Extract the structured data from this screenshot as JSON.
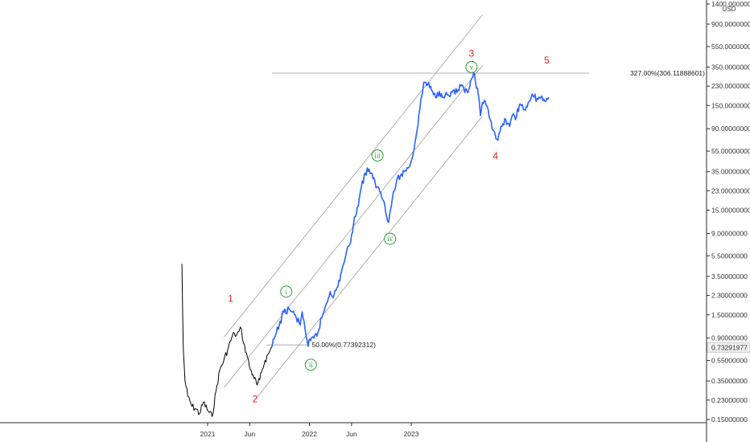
{
  "chart_data": {
    "type": "line",
    "y_scale": "log",
    "currency": "USD",
    "price_axis": {
      "tick_labels": [
        "1400.00000000",
        "900.00000000",
        "550.00000000",
        "350.00000000",
        "230.00000000",
        "150.00000000",
        "90.00000000",
        "55.00000000",
        "35.00000000",
        "23.00000000",
        "15.00000000",
        "9.00000000",
        "5.50000000",
        "3.50000000",
        "2.30000000",
        "1.50000000",
        "0.90000000",
        "0.55000000",
        "0.35000000",
        "0.23000000",
        "0.15000000"
      ],
      "tick_values": [
        1400,
        900,
        550,
        350,
        230,
        150,
        90,
        55,
        35,
        23,
        15,
        9,
        5.5,
        3.5,
        2.3,
        1.5,
        0.9,
        0.55,
        0.35,
        0.23,
        0.15
      ]
    },
    "time_axis": {
      "tick_labels": [
        "2021",
        "Jun",
        "2022",
        "Jun",
        "2023"
      ],
      "tick_dates": [
        "2021-01-01",
        "2021-06-01",
        "2022-01-01",
        "2022-06-01",
        "2023-01-01"
      ]
    },
    "current_price": {
      "label": "0.73291977",
      "value": 0.733
    },
    "series": [
      {
        "color": "#000000",
        "x": [
          "2020-10-01",
          "2020-10-03",
          "2020-10-06",
          "2020-10-12",
          "2020-10-22",
          "2020-11-06",
          "2020-11-20",
          "2020-12-03",
          "2020-12-17",
          "2021-01-03",
          "2021-01-17",
          "2021-01-31",
          "2021-02-14",
          "2021-02-28",
          "2021-03-14",
          "2021-03-28",
          "2021-04-07",
          "2021-04-14",
          "2021-04-24",
          "2021-05-02",
          "2021-05-10",
          "2021-05-20",
          "2021-06-03",
          "2021-06-13",
          "2021-06-27",
          "2021-07-07",
          "2021-07-16",
          "2021-07-26",
          "2021-08-09",
          "2021-08-20"
        ],
        "values": [
          4.6,
          1.9,
          0.7,
          0.35,
          0.25,
          0.2,
          0.19,
          0.17,
          0.22,
          0.18,
          0.16,
          0.28,
          0.45,
          0.55,
          0.7,
          0.9,
          1.0,
          0.95,
          1.05,
          1.1,
          0.8,
          0.65,
          0.45,
          0.4,
          0.32,
          0.36,
          0.45,
          0.55,
          0.65,
          0.75
        ]
      },
      {
        "color": "#2962ff",
        "x": [
          "2021-08-20",
          "2021-09-01",
          "2021-09-15",
          "2021-10-01",
          "2021-10-20",
          "2021-11-01",
          "2021-11-15",
          "2021-11-29",
          "2021-12-06",
          "2021-12-13",
          "2021-12-20",
          "2021-12-27",
          "2022-01-05",
          "2022-01-17",
          "2022-01-31",
          "2022-02-14",
          "2022-03-02",
          "2022-03-16",
          "2022-03-30",
          "2022-04-13",
          "2022-04-27",
          "2022-05-11",
          "2022-05-25",
          "2022-06-08",
          "2022-06-22",
          "2022-07-06",
          "2022-07-20",
          "2022-08-03",
          "2022-08-17",
          "2022-08-31",
          "2022-09-14",
          "2022-09-28",
          "2022-10-12",
          "2022-10-26",
          "2022-11-09",
          "2022-11-23",
          "2022-12-07",
          "2022-12-21",
          "2023-01-04",
          "2023-01-18",
          "2023-02-01",
          "2023-02-15",
          "2023-03-01",
          "2023-03-15",
          "2023-03-29",
          "2023-04-05",
          "2023-04-19",
          "2023-05-03",
          "2023-05-17",
          "2023-05-31",
          "2023-06-14",
          "2023-06-28",
          "2023-07-12",
          "2023-07-26",
          "2023-08-09",
          "2023-08-16",
          "2023-08-23",
          "2023-08-30",
          "2023-09-06",
          "2023-09-13",
          "2023-09-27",
          "2023-10-11",
          "2023-10-25",
          "2023-11-08",
          "2023-11-22",
          "2023-12-06",
          "2023-12-20",
          "2024-01-03",
          "2024-01-10",
          "2024-01-17",
          "2024-01-31",
          "2024-02-14",
          "2024-02-28",
          "2024-03-13",
          "2024-03-27",
          "2024-04-10",
          "2024-04-24",
          "2024-05-08"
        ],
        "values": [
          0.75,
          0.95,
          1.2,
          1.6,
          1.7,
          1.6,
          1.4,
          1.2,
          1.6,
          1.3,
          0.95,
          0.75,
          0.85,
          0.9,
          1.0,
          1.4,
          1.9,
          2.5,
          2.3,
          2.8,
          4.0,
          5.5,
          7.0,
          11.0,
          16.0,
          25.0,
          34.0,
          37.0,
          30.0,
          25.0,
          22.0,
          17.0,
          11.5,
          20.0,
          28.0,
          32.0,
          35.0,
          38.0,
          47.0,
          75.0,
          140.0,
          250.0,
          240.0,
          210.0,
          180.0,
          200.0,
          195.0,
          190.0,
          185.0,
          210.0,
          200.0,
          230.0,
          200.0,
          210.0,
          280.0,
          300.0,
          220.0,
          190.0,
          120.0,
          160.0,
          150.0,
          110.0,
          85.0,
          70.0,
          95.0,
          110.0,
          95.0,
          125.0,
          110.0,
          140.0,
          150.0,
          135.0,
          165.0,
          185.0,
          175.0,
          180.0,
          165.0,
          180.0
        ]
      }
    ],
    "channel": {
      "anchors": [
        {
          "x": "2021-03-01",
          "y": 0.92
        },
        {
          "x": "2023-09-13",
          "y": 1100
        },
        {
          "x": "2021-06-13",
          "y": 0.22
        }
      ],
      "line_color": "#9e9e9e"
    },
    "annotations": {
      "fib_lines": [
        {
          "label": "327.00%(306.11888601)",
          "value": 306.11888601,
          "x_start": "2021-08-20",
          "x_end": "2024-09-30"
        },
        {
          "label": "50.00%(0.77392312)",
          "value": 0.77392312,
          "x_start": "2021-08-01",
          "x_end": "2022-01-01"
        }
      ],
      "wave_labels_red": [
        {
          "text": "1",
          "x": "2021-03-24",
          "y": 2.0
        },
        {
          "text": "2",
          "x": "2021-06-20",
          "y": 0.22
        },
        {
          "text": "3",
          "x": "2023-08-05",
          "y": 440
        },
        {
          "text": "4",
          "x": "2023-10-30",
          "y": 46
        },
        {
          "text": "5",
          "x": "2024-05-01",
          "y": 380
        }
      ],
      "wave_labels_green": [
        {
          "text": "i",
          "x": "2021-10-10",
          "y": 2.5
        },
        {
          "text": "ii",
          "x": "2022-01-06",
          "y": 0.5
        },
        {
          "text": "iii",
          "x": "2022-09-02",
          "y": 50
        },
        {
          "text": "iv",
          "x": "2022-10-17",
          "y": 8.0
        },
        {
          "text": "v",
          "x": "2023-08-05",
          "y": 350
        }
      ]
    }
  }
}
